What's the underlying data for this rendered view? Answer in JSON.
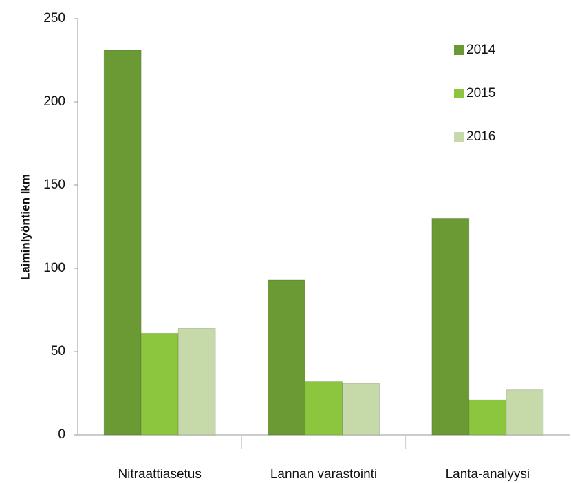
{
  "chart_data": {
    "type": "bar",
    "y_label": "Laiminlyöntien lkm",
    "categories": [
      "Nitraattiasetus",
      "Lannan varastointi",
      "Lanta-analyysi"
    ],
    "series": [
      {
        "name": "2014",
        "color": "#6b9a35",
        "values": [
          231,
          93,
          130
        ]
      },
      {
        "name": "2015",
        "color": "#8cc63f",
        "values": [
          61,
          32,
          21
        ]
      },
      {
        "name": "2016",
        "color": "#c6d9a9",
        "values": [
          64,
          31,
          27
        ]
      }
    ],
    "ylim": [
      0,
      250
    ],
    "yticks": [
      0,
      50,
      100,
      150,
      200,
      250
    ],
    "legend": "top-right"
  }
}
